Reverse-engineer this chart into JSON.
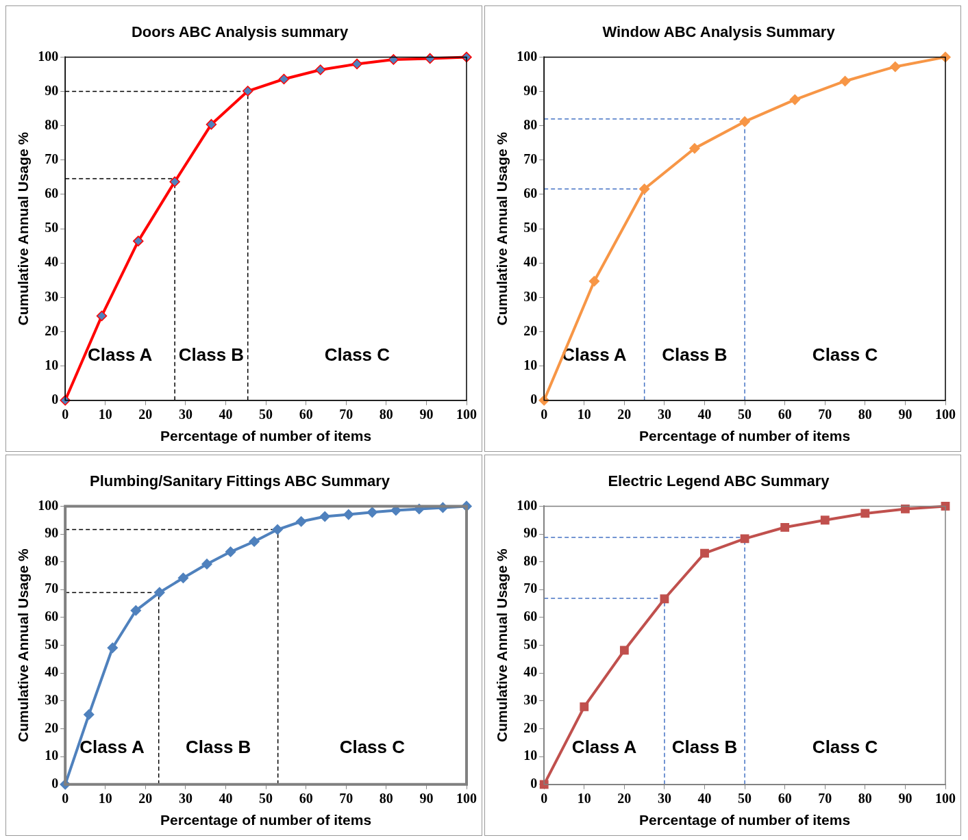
{
  "chart_data": [
    {
      "type": "line",
      "title": "Doors ABC Analysis summary",
      "xlabel": "Percentage of number of items",
      "ylabel": "Cumulative Annual Usage %",
      "x": [
        0,
        9.1,
        18.2,
        27.3,
        36.4,
        45.5,
        54.5,
        63.6,
        72.7,
        81.8,
        90.9,
        100
      ],
      "series": [
        {
          "color": "#ff0000",
          "colors": [
            "#4f81bd",
            "#4f81bd",
            "#4f81bd",
            "#4f81bd",
            "#4f81bd",
            "#4f81bd",
            "#4f81bd",
            "#4f81bd",
            "#4f81bd",
            "#4f81bd",
            "#4f81bd",
            "#4f81bd"
          ],
          "values": [
            0,
            24.6,
            46.4,
            63.7,
            80.4,
            90.1,
            93.6,
            96.3,
            98,
            99.3,
            99.6,
            100
          ]
        }
      ],
      "xlim": [
        0,
        100
      ],
      "xticks": [
        0,
        10,
        20,
        30,
        40,
        50,
        60,
        70,
        80,
        90,
        100
      ],
      "ylim": [
        0,
        100
      ],
      "yticks": [
        0,
        10,
        20,
        30,
        40,
        50,
        60,
        70,
        80,
        90,
        100
      ],
      "grid": false,
      "legend": false,
      "marker": "diamond",
      "line_style": "solid",
      "ref_lines": [
        {
          "axis": "x",
          "value": 27.3,
          "color": "#000000",
          "line_style": "dashed"
        },
        {
          "axis": "x",
          "value": 45.5,
          "color": "#000000",
          "line_style": "dashed"
        },
        {
          "axis": "y",
          "value": 64.6,
          "color": "#000000",
          "line_style": "dashed"
        },
        {
          "axis": "y",
          "value": 90,
          "color": "#000000",
          "line_style": "dashed"
        }
      ],
      "annotations": [
        "Class A",
        "Class B",
        "Class C"
      ]
    },
    {
      "type": "line",
      "title": "Window ABC Analysis Summary",
      "xlabel": "Percentage of number of items",
      "ylabel": "Cumulative Annual Usage %",
      "x": [
        0,
        12.5,
        25,
        37.5,
        50,
        62.5,
        75,
        87.5,
        100
      ],
      "series": [
        {
          "color": "#f79646",
          "values": [
            0,
            34.7,
            61.6,
            73.4,
            81.2,
            87.6,
            93,
            97.2,
            100
          ]
        }
      ],
      "xlim": [
        0,
        100
      ],
      "xticks": [
        0,
        10,
        20,
        30,
        40,
        50,
        60,
        70,
        80,
        90,
        100
      ],
      "ylim": [
        0,
        100
      ],
      "yticks": [
        0,
        10,
        20,
        30,
        40,
        50,
        60,
        70,
        80,
        90,
        100
      ],
      "grid": false,
      "legend": false,
      "marker": "diamond",
      "line_style": "solid",
      "ref_lines": [
        {
          "axis": "x",
          "value": 25,
          "color": "#4472c4",
          "line_style": "dashed"
        },
        {
          "axis": "x",
          "value": 50,
          "color": "#4472c4",
          "line_style": "dashed"
        },
        {
          "axis": "y",
          "value": 61.6,
          "color": "#4472c4",
          "line_style": "dashed"
        },
        {
          "axis": "y",
          "value": 82,
          "color": "#4472c4",
          "line_style": "dashed"
        }
      ],
      "annotations": [
        "Class A",
        "Class B",
        "Class C"
      ]
    },
    {
      "type": "line",
      "title": "Plumbing/Sanitary Fittings ABC Summary",
      "xlabel": "Percentage of number of items",
      "ylabel": "Cumulative Annual Usage %",
      "x": [
        0,
        5.9,
        11.8,
        17.6,
        23.5,
        29.4,
        35.3,
        41.2,
        47.1,
        52.9,
        58.8,
        64.7,
        70.6,
        76.5,
        82.4,
        88.2,
        94.1,
        100
      ],
      "series": [
        {
          "color": "#4f81bd",
          "values": [
            0,
            25.1,
            49.1,
            62.5,
            69,
            74.2,
            79.2,
            83.6,
            87.3,
            91.6,
            94.5,
            96.3,
            97,
            97.8,
            98.5,
            99,
            99.5,
            100
          ]
        }
      ],
      "xlim": [
        0,
        100
      ],
      "xticks": [
        0,
        10,
        20,
        30,
        40,
        50,
        60,
        70,
        80,
        90,
        100
      ],
      "ylim": [
        0,
        100
      ],
      "yticks": [
        0,
        10,
        20,
        30,
        40,
        50,
        60,
        70,
        80,
        90,
        100
      ],
      "grid": false,
      "legend": false,
      "marker": "diamond",
      "line_style": "solid",
      "ref_lines": [
        {
          "axis": "x",
          "value": 23.3,
          "color": "#000000",
          "line_style": "dashed"
        },
        {
          "axis": "x",
          "value": 53,
          "color": "#000000",
          "line_style": "dashed"
        },
        {
          "axis": "y",
          "value": 69,
          "color": "#000000",
          "line_style": "dashed"
        },
        {
          "axis": "y",
          "value": 91.6,
          "color": "#000000",
          "line_style": "dashed"
        }
      ],
      "annotations": [
        "Class A",
        "Class B",
        "Class C"
      ]
    },
    {
      "type": "line",
      "title": "Electric Legend ABC Summary",
      "xlabel": "Percentage of number of items",
      "ylabel": "Cumulative Annual Usage %",
      "x": [
        0,
        10,
        20,
        30,
        40,
        50,
        60,
        70,
        80,
        90,
        100
      ],
      "series": [
        {
          "color": "#c0504d",
          "values": [
            0,
            27.9,
            48.2,
            66.7,
            83.1,
            88.3,
            92.4,
            95,
            97.4,
            99,
            100
          ]
        }
      ],
      "xlim": [
        0,
        100
      ],
      "xticks": [
        0,
        10,
        20,
        30,
        40,
        50,
        60,
        70,
        80,
        90,
        100
      ],
      "ylim": [
        0,
        100
      ],
      "yticks": [
        0,
        10,
        20,
        30,
        40,
        50,
        60,
        70,
        80,
        90,
        100
      ],
      "grid": false,
      "legend": false,
      "marker": "square",
      "line_style": "solid",
      "ref_lines": [
        {
          "axis": "x",
          "value": 30,
          "color": "#4472c4",
          "line_style": "dashed"
        },
        {
          "axis": "x",
          "value": 50,
          "color": "#4472c4",
          "line_style": "dashed"
        },
        {
          "axis": "y",
          "value": 66.9,
          "color": "#4472c4",
          "line_style": "dashed"
        },
        {
          "axis": "y",
          "value": 88.8,
          "color": "#4472c4",
          "line_style": "dashed"
        }
      ],
      "annotations": [
        "Class A",
        "Class B",
        "Class C"
      ]
    }
  ]
}
